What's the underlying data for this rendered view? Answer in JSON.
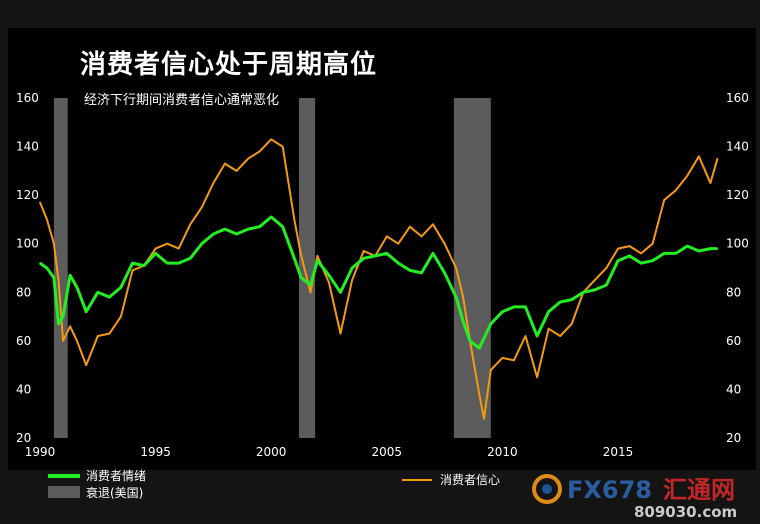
{
  "chart_data": {
    "type": "line",
    "title": "消费者信心处于周期高位",
    "subtitle": "经济下行期间消费者信心通常恶化",
    "xlim": [
      1990,
      2019.5
    ],
    "ylim_left": [
      20,
      160
    ],
    "ylim_right": [
      20,
      160
    ],
    "x_ticks": [
      "1990",
      "1995",
      "2000",
      "2005",
      "2010",
      "2015"
    ],
    "y_ticks_left": [
      "20",
      "40",
      "60",
      "80",
      "100",
      "120",
      "140",
      "160"
    ],
    "y_ticks_right": [
      "20",
      "40",
      "60",
      "80",
      "100",
      "120",
      "140",
      "160"
    ],
    "grid": false,
    "legend_position": "bottom",
    "recessions": [
      {
        "start": 1990.6,
        "end": 1991.2
      },
      {
        "start": 2001.2,
        "end": 2001.9
      },
      {
        "start": 2007.9,
        "end": 2009.5
      }
    ],
    "series": [
      {
        "name": "消费者情绪",
        "color": "#22ee22",
        "axis": "left",
        "x": [
          1990.0,
          1990.3,
          1990.6,
          1990.8,
          1991.0,
          1991.3,
          1991.6,
          1992.0,
          1992.5,
          1993.0,
          1993.5,
          1994.0,
          1994.5,
          1995.0,
          1995.5,
          1996.0,
          1996.5,
          1997.0,
          1997.5,
          1998.0,
          1998.5,
          1999.0,
          1999.5,
          2000.0,
          2000.5,
          2001.0,
          2001.3,
          2001.7,
          2002.0,
          2002.5,
          2003.0,
          2003.5,
          2004.0,
          2004.5,
          2005.0,
          2005.5,
          2006.0,
          2006.5,
          2007.0,
          2007.5,
          2008.0,
          2008.3,
          2008.6,
          2009.0,
          2009.5,
          2010.0,
          2010.5,
          2011.0,
          2011.5,
          2012.0,
          2012.5,
          2013.0,
          2013.5,
          2014.0,
          2014.5,
          2015.0,
          2015.5,
          2016.0,
          2016.5,
          2017.0,
          2017.5,
          2018.0,
          2018.5,
          2019.0,
          2019.3
        ],
        "values": [
          92,
          90,
          86,
          67,
          70,
          87,
          82,
          72,
          80,
          78,
          82,
          92,
          91,
          96,
          92,
          92,
          94,
          100,
          104,
          106,
          104,
          106,
          107,
          111,
          107,
          94,
          86,
          83,
          93,
          87,
          80,
          90,
          94,
          95,
          96,
          92,
          89,
          88,
          96,
          88,
          78,
          68,
          60,
          57,
          67,
          72,
          74,
          74,
          62,
          72,
          76,
          77,
          80,
          81,
          83,
          93,
          95,
          92,
          93,
          96,
          96,
          99,
          97,
          98,
          98
        ]
      },
      {
        "name": "消费者信心",
        "color": "#f39a14",
        "axis": "right",
        "x": [
          1990.0,
          1990.3,
          1990.6,
          1990.8,
          1991.0,
          1991.3,
          1991.6,
          1992.0,
          1992.5,
          1993.0,
          1993.5,
          1994.0,
          1994.5,
          1995.0,
          1995.5,
          1996.0,
          1996.5,
          1997.0,
          1997.5,
          1998.0,
          1998.5,
          1999.0,
          1999.5,
          2000.0,
          2000.5,
          2001.0,
          2001.3,
          2001.7,
          2002.0,
          2002.5,
          2003.0,
          2003.5,
          2004.0,
          2004.5,
          2005.0,
          2005.5,
          2006.0,
          2006.5,
          2007.0,
          2007.5,
          2008.0,
          2008.3,
          2008.6,
          2009.0,
          2009.2,
          2009.5,
          2010.0,
          2010.5,
          2011.0,
          2011.5,
          2012.0,
          2012.5,
          2013.0,
          2013.5,
          2014.0,
          2014.5,
          2015.0,
          2015.5,
          2016.0,
          2016.5,
          2017.0,
          2017.5,
          2018.0,
          2018.5,
          2019.0,
          2019.3
        ],
        "values": [
          117,
          110,
          100,
          85,
          60,
          66,
          60,
          50,
          62,
          63,
          70,
          89,
          91,
          98,
          100,
          98,
          108,
          115,
          125,
          133,
          130,
          135,
          138,
          143,
          140,
          110,
          95,
          80,
          95,
          84,
          63,
          85,
          97,
          95,
          103,
          100,
          107,
          103,
          108,
          100,
          90,
          78,
          60,
          38,
          28,
          48,
          53,
          52,
          62,
          45,
          65,
          62,
          67,
          80,
          85,
          90,
          98,
          99,
          96,
          100,
          118,
          122,
          128,
          136,
          125,
          135
        ]
      }
    ]
  },
  "legend": {
    "sentiment_label": "消费者情绪",
    "recession_label": "衰退(美国)",
    "confidence_label": "消费者信心"
  },
  "watermark": {
    "brand": "FX678",
    "brand_cn": "汇通网",
    "site": "809030.com"
  },
  "colors": {
    "background": "#000000",
    "recession": "#5c5c5c",
    "sentiment": "#22ee22",
    "confidence": "#f39a14"
  }
}
